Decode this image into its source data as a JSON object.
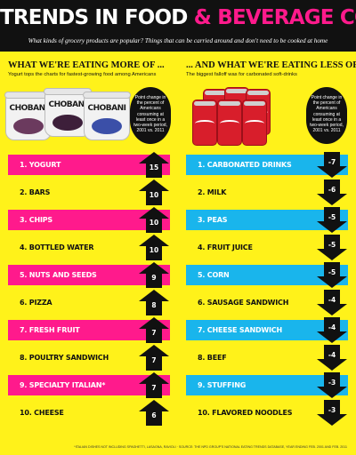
{
  "header": {
    "title_part1": "TRENDS IN FOOD",
    "title_part2": "& BEVERAGE CONSUMPTION",
    "subtitle": "What kinds of grocery products are popular? Things that can be carried around and don't need to be cooked at home"
  },
  "left_panel": {
    "heading": "WHAT WE'RE EATING MORE OF ...",
    "description": "Yogurt tops the charts for fastest-growing food among Americans",
    "annotation": "Point change in the percent of Americans consuming at least once in a two-week period, 2001 vs. 2011",
    "illustration": {
      "brand": "CHOBANI",
      "name": "yogurt-cups"
    }
  },
  "right_panel": {
    "heading": "... AND WHAT WE'RE EATING LESS OF",
    "description": "The biggest falloff was for carbonated soft-drinks",
    "annotation": "Point change in the percent of Americans consuming at least once in a two-week period, 2001 vs. 2011",
    "illustration": {
      "name": "soda-can-six-pack"
    }
  },
  "colors": {
    "background": "#fff21a",
    "header": "#111111",
    "accent_pink": "#ff1a8c",
    "accent_cyan": "#19b5ec",
    "arrow": "#111111"
  },
  "chart_data": [
    {
      "type": "bar",
      "categories": [
        "1. YOGURT",
        "2. BARS",
        "3. CHIPS",
        "4. BOTTLED WATER",
        "5. NUTS AND SEEDS",
        "6. PIZZA",
        "7. FRESH FRUIT",
        "8. POULTRY SANDWICH",
        "9. SPECIALTY ITALIAN*",
        "10. CHEESE"
      ],
      "values": [
        15,
        10,
        10,
        10,
        9,
        8,
        7,
        7,
        7,
        6
      ],
      "labels": [
        "15",
        "10",
        "10",
        "10",
        "9",
        "8",
        "7",
        "7",
        "7",
        "6"
      ],
      "title": "WHAT WE'RE EATING MORE OF ..."
    },
    {
      "type": "bar",
      "categories": [
        "1. CARBONATED DRINKS",
        "2. MILK",
        "3. PEAS",
        "4. FRUIT JUICE",
        "5. CORN",
        "6. SAUSAGE SANDWICH",
        "7. CHEESE SANDWICH",
        "8. BEEF",
        "9. STUFFING",
        "10. FLAVORED NOODLES"
      ],
      "values": [
        -7,
        -6,
        -5,
        -5,
        -5,
        -4,
        -4,
        -4,
        -3,
        -3
      ],
      "labels": [
        "-7",
        "-6",
        "-5",
        "-5",
        "-5",
        "-4",
        "-4",
        "-4",
        "-3",
        "-3"
      ],
      "title": "... AND WHAT WE'RE EATING LESS OF"
    }
  ],
  "footnote": "*ITALIAN DISHES NOT INCLUDING SPAGHETTI, LASAGNA, RAVIOLI · SOURCE: THE NPD GROUP'S NATIONAL EATING TRENDS DATABASE, YEAR ENDING FEB. 2001 AND FEB. 2011"
}
